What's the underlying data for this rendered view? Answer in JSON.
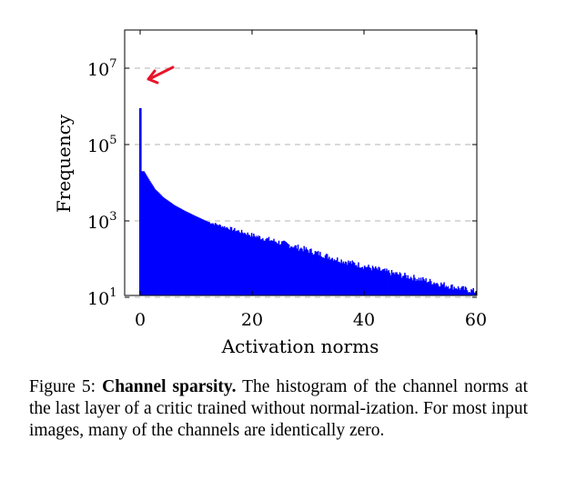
{
  "chart_data": {
    "type": "bar",
    "xlabel": "Activation norms",
    "ylabel": "Frequency",
    "xlim": [
      0,
      60
    ],
    "ylim_log10": [
      0,
      7
    ],
    "y_scale": "log",
    "x_ticks": [
      0,
      20,
      40,
      60
    ],
    "y_ticks": [
      {
        "base": "10",
        "exp": "1"
      },
      {
        "base": "10",
        "exp": "3"
      },
      {
        "base": "10",
        "exp": "5"
      },
      {
        "base": "10",
        "exp": "7"
      }
    ],
    "grid": "dashed horizontal lines at 10^1, 10^3, 10^5, 10^7",
    "bar_color": "#0000ff",
    "arrow_color": "#e8162a",
    "spike": {
      "x": 0,
      "value": 900000
    },
    "bins": [
      {
        "x": 0.6,
        "value": 20000
      },
      {
        "x": 1.5,
        "value": 12000
      },
      {
        "x": 2.5,
        "value": 7000
      },
      {
        "x": 4,
        "value": 4200
      },
      {
        "x": 6,
        "value": 2600
      },
      {
        "x": 8,
        "value": 1800
      },
      {
        "x": 10,
        "value": 1300
      },
      {
        "x": 12,
        "value": 950
      },
      {
        "x": 15,
        "value": 700
      },
      {
        "x": 20,
        "value": 420
      },
      {
        "x": 25,
        "value": 270
      },
      {
        "x": 30,
        "value": 170
      },
      {
        "x": 35,
        "value": 100
      },
      {
        "x": 40,
        "value": 65
      },
      {
        "x": 45,
        "value": 43
      },
      {
        "x": 50,
        "value": 30
      },
      {
        "x": 55,
        "value": 20
      },
      {
        "x": 60,
        "value": 14
      }
    ]
  },
  "caption": {
    "figure_label": "Figure 5: ",
    "title": "Channel sparsity.",
    "text": " The histogram of the channel norms at the last layer of a critic trained without normal-ization. For most input images, many of the channels are identically zero."
  }
}
